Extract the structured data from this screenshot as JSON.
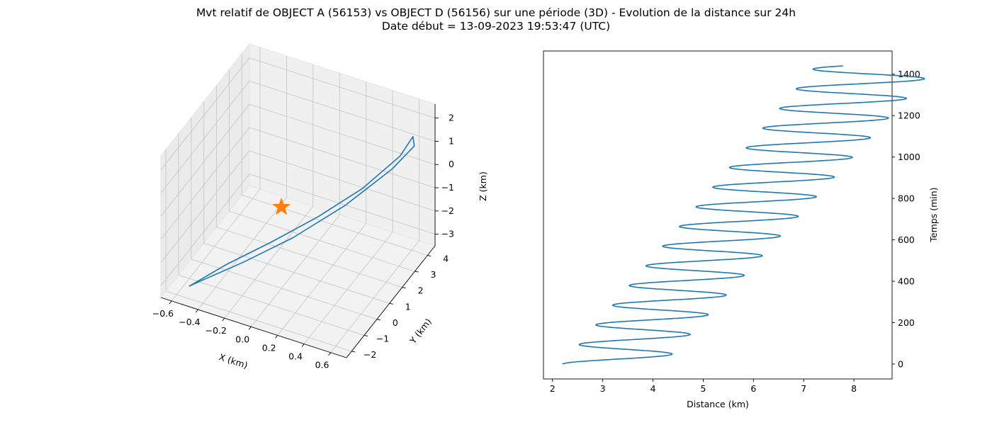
{
  "figure": {
    "title_line1": "Mvt relatif de OBJECT A (56153) vs OBJECT D (56156) sur une période (3D) - Evolution de la distance sur 24h",
    "title_line2": "Date début = 13-09-2023 19:53:47 (UTC)"
  },
  "chart_data": [
    {
      "type": "line3d",
      "xlabel": "X (km)",
      "ylabel": "Y (km)",
      "zlabel": "Z (km)",
      "xticks": [
        "−0.6",
        "−0.4",
        "−0.2",
        "0.0",
        "0.2",
        "0.4",
        "0.6"
      ],
      "yticks": [
        "−2",
        "−1",
        "0",
        "1",
        "2",
        "3",
        "4"
      ],
      "zticks": [
        "−3",
        "−2",
        "−1",
        "0",
        "1",
        "2"
      ],
      "xlim": [
        -0.68,
        0.72
      ],
      "ylim": [
        -2.4,
        4.6
      ],
      "zlim": [
        -3.5,
        2.6
      ],
      "grid": true,
      "series": [
        {
          "color": "#1f77b4",
          "points": [
            [
              -0.52,
              -1.85,
              -3.1
            ],
            [
              -0.3,
              -1.2,
              -2.2
            ],
            [
              -0.05,
              -0.3,
              -1.4
            ],
            [
              0.2,
              0.8,
              -0.6
            ],
            [
              0.42,
              2.0,
              0.2
            ],
            [
              0.58,
              3.3,
              1.0
            ],
            [
              0.62,
              3.9,
              1.5
            ],
            [
              0.64,
              3.8,
              1.2
            ],
            [
              0.55,
              3.0,
              0.6
            ],
            [
              0.32,
              1.7,
              -0.5
            ],
            [
              0.05,
              0.4,
              -1.5
            ],
            [
              -0.22,
              -0.7,
              -2.3
            ],
            [
              -0.45,
              -1.6,
              -2.9
            ],
            [
              -0.52,
              -1.85,
              -3.1
            ]
          ]
        }
      ],
      "marker": {
        "symbol": "star",
        "color": "#ff7f0e",
        "point": [
          0,
          0,
          0
        ]
      }
    },
    {
      "type": "line",
      "xlabel": "Distance (km)",
      "ylabel": "Temps (min)",
      "xticks": [
        2,
        3,
        4,
        5,
        6,
        7,
        8
      ],
      "yticks": [
        0,
        200,
        400,
        600,
        800,
        1000,
        1200,
        1400
      ],
      "xlim": [
        1.82,
        8.76
      ],
      "ylim": [
        -72,
        1512
      ],
      "yaxis_side": "right",
      "grid": false,
      "series": [
        {
          "color": "#1f77b4",
          "trend_start": 2.2,
          "trend_slope_km_per_min": 0.0035,
          "amplitude_min": 1.0,
          "amplitude_max": 1.2,
          "period_min": 95,
          "t_end_min": 1440
        }
      ]
    }
  ]
}
